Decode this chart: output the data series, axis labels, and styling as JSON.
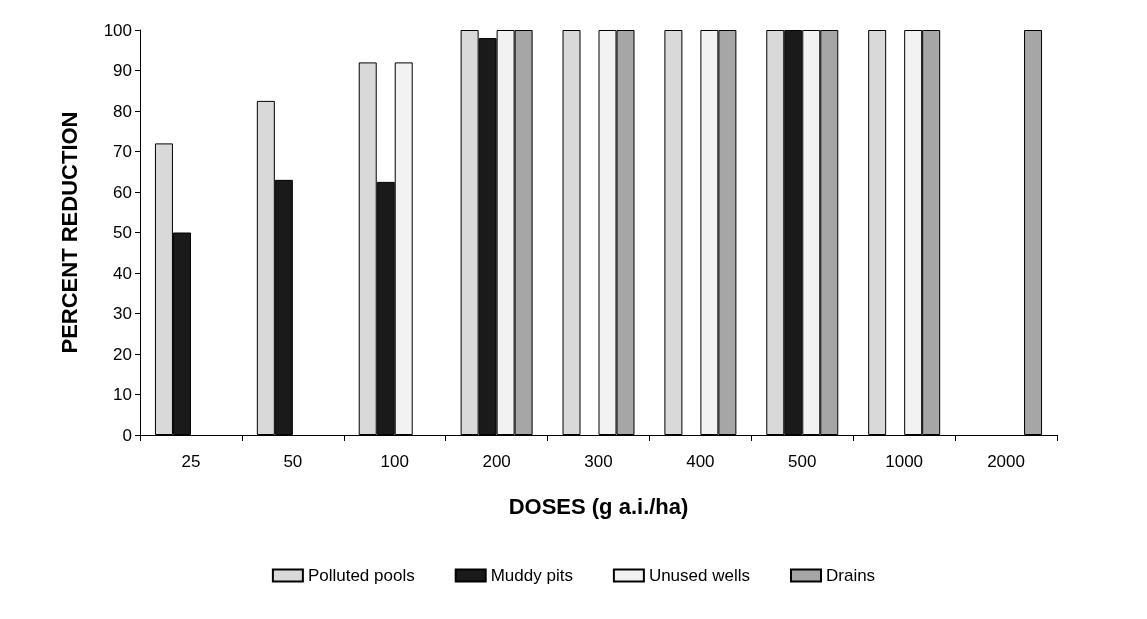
{
  "chart_data": {
    "type": "bar",
    "xlabel": "DOSES (g a.i./ha)",
    "ylabel": "PERCENT REDUCTION",
    "categories": [
      "25",
      "50",
      "100",
      "200",
      "300",
      "400",
      "500",
      "1000",
      "2000"
    ],
    "series": [
      {
        "name": "Polluted pools",
        "color": "#d9d9d9",
        "values": [
          72,
          82.5,
          92,
          100,
          100,
          100,
          100,
          100,
          null
        ]
      },
      {
        "name": "Muddy pits",
        "color": "#1a1a1a",
        "values": [
          50,
          63,
          62.5,
          98,
          null,
          null,
          100,
          null,
          null
        ]
      },
      {
        "name": "Unused wells",
        "color": "#f2f2f2",
        "values": [
          null,
          null,
          92,
          100,
          100,
          100,
          100,
          100,
          null
        ]
      },
      {
        "name": "Drains",
        "color": "#a6a6a6",
        "values": [
          null,
          null,
          null,
          100,
          100,
          100,
          100,
          100,
          100
        ]
      }
    ],
    "ylim": [
      0,
      100
    ],
    "yticks": [
      0,
      10,
      20,
      30,
      40,
      50,
      60,
      70,
      80,
      90,
      100
    ],
    "grid": false,
    "legend": "bottom"
  }
}
